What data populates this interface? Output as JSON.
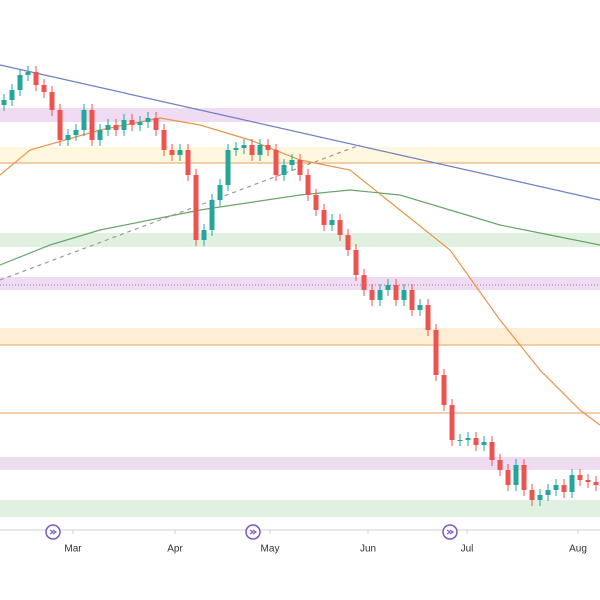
{
  "chart_data": {
    "type": "candlestick",
    "xlim": [
      0,
      600
    ],
    "ylim": [
      0,
      600
    ],
    "xticks": [
      {
        "value": 73,
        "label": "Mar"
      },
      {
        "value": 175,
        "label": "Apr"
      },
      {
        "value": 270,
        "label": "May"
      },
      {
        "value": 368,
        "label": "Jun"
      },
      {
        "value": 467,
        "label": "Jul"
      },
      {
        "value": 578,
        "label": "Aug"
      }
    ],
    "up_color": "#26a69a",
    "down_color": "#ef5350",
    "x": [
      4,
      12,
      20,
      28,
      36,
      44,
      52,
      60,
      68,
      76,
      84,
      92,
      100,
      108,
      116,
      124,
      132,
      140,
      148,
      156,
      164,
      172,
      180,
      188,
      196,
      204,
      212,
      220,
      228,
      236,
      244,
      252,
      260,
      268,
      276,
      284,
      292,
      300,
      308,
      316,
      324,
      332,
      340,
      348,
      356,
      364,
      372,
      380,
      388,
      396,
      404,
      412,
      420,
      428,
      436,
      444,
      452,
      460,
      468,
      476,
      484,
      492,
      500,
      508,
      516,
      524,
      532,
      540,
      548,
      556,
      564,
      572,
      580,
      588,
      596
    ],
    "open": [
      495,
      500,
      510,
      525,
      528,
      515,
      508,
      490,
      460,
      465,
      470,
      490,
      460,
      470,
      475,
      470,
      480,
      475,
      478,
      482,
      470,
      450,
      445,
      450,
      425,
      360,
      370,
      400,
      415,
      450,
      452,
      455,
      445,
      455,
      450,
      425,
      435,
      440,
      425,
      405,
      390,
      375,
      380,
      365,
      350,
      325,
      310,
      300,
      310,
      315,
      300,
      310,
      290,
      295,
      270,
      225,
      195,
      160,
      160,
      162,
      155,
      158,
      140,
      130,
      115,
      135,
      110,
      100,
      105,
      110,
      115,
      108,
      125,
      120,
      118
    ],
    "high": [
      506,
      516,
      531,
      534,
      534,
      521,
      514,
      496,
      471,
      476,
      496,
      496,
      476,
      481,
      481,
      486,
      486,
      484,
      488,
      488,
      476,
      456,
      456,
      456,
      431,
      376,
      406,
      421,
      456,
      458,
      461,
      461,
      461,
      461,
      456,
      441,
      446,
      446,
      431,
      411,
      396,
      386,
      386,
      371,
      356,
      331,
      316,
      316,
      321,
      321,
      316,
      316,
      301,
      301,
      276,
      231,
      201,
      166,
      168,
      168,
      164,
      164,
      146,
      136,
      141,
      141,
      116,
      111,
      116,
      121,
      121,
      131,
      131,
      126,
      124
    ],
    "low": [
      489,
      494,
      504,
      519,
      509,
      502,
      484,
      454,
      454,
      459,
      464,
      454,
      454,
      464,
      464,
      464,
      469,
      469,
      472,
      464,
      444,
      439,
      439,
      419,
      354,
      354,
      364,
      394,
      409,
      444,
      446,
      439,
      439,
      444,
      419,
      419,
      429,
      419,
      399,
      384,
      369,
      369,
      359,
      344,
      319,
      304,
      294,
      294,
      304,
      294,
      294,
      284,
      284,
      264,
      219,
      189,
      154,
      154,
      154,
      149,
      149,
      134,
      124,
      109,
      109,
      104,
      94,
      94,
      99,
      104,
      102,
      102,
      114,
      112,
      109
    ],
    "close": [
      500,
      510,
      525,
      528,
      515,
      508,
      490,
      460,
      465,
      470,
      490,
      460,
      470,
      475,
      470,
      480,
      475,
      478,
      482,
      470,
      450,
      445,
      450,
      425,
      360,
      370,
      400,
      415,
      450,
      452,
      455,
      445,
      455,
      450,
      425,
      435,
      440,
      425,
      405,
      390,
      375,
      380,
      365,
      350,
      325,
      310,
      300,
      310,
      315,
      300,
      310,
      290,
      295,
      270,
      225,
      195,
      160,
      160,
      162,
      155,
      158,
      140,
      130,
      115,
      135,
      110,
      100,
      105,
      110,
      115,
      108,
      125,
      120,
      118,
      115
    ],
    "zones": [
      {
        "range": [
          478,
          492
        ],
        "color": "#e1bee7"
      },
      {
        "range": [
          437,
          453
        ],
        "color": "#fff3c4"
      },
      {
        "range": [
          353,
          367
        ],
        "color": "#c8e6c9"
      },
      {
        "range": [
          310,
          323
        ],
        "color": "#e1bee7"
      },
      {
        "range": [
          255,
          272
        ],
        "color": "#ffe0b2"
      },
      {
        "range": [
          130,
          143
        ],
        "color": "#e1bee7"
      },
      {
        "range": [
          83,
          100
        ],
        "color": "#c8e6c9"
      }
    ],
    "levels": [
      {
        "value": 437,
        "color": "#e6a15c",
        "dash": false
      },
      {
        "value": 315,
        "color": "#9c7bb0",
        "dash": true
      },
      {
        "value": 255,
        "color": "#e6a15c",
        "dash": false
      },
      {
        "value": 187,
        "color": "#e6a15c",
        "dash": false
      }
    ],
    "lines": [
      {
        "color": "#e6964a",
        "dash": false,
        "x": [
          0,
          30,
          100,
          160,
          200,
          250,
          300,
          350,
          400,
          450,
          500,
          540,
          580,
          600
        ],
        "values": [
          425,
          450,
          470,
          482,
          475,
          460,
          440,
          430,
          390,
          350,
          280,
          230,
          190,
          175
        ]
      },
      {
        "color": "#6aa56a",
        "dash": false,
        "x": [
          0,
          50,
          100,
          200,
          300,
          350,
          400,
          450,
          500,
          550,
          600
        ],
        "values": [
          335,
          355,
          370,
          390,
          405,
          410,
          405,
          390,
          375,
          365,
          355
        ]
      },
      {
        "color": "#6b7fc4",
        "dash": false,
        "x": [
          0,
          600
        ],
        "values": [
          535,
          400
        ]
      },
      {
        "color": "#999999",
        "dash": true,
        "x": [
          0,
          360
        ],
        "values": [
          320,
          455
        ]
      }
    ]
  }
}
